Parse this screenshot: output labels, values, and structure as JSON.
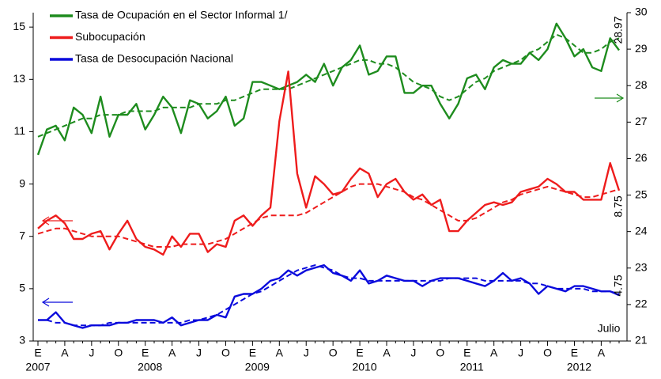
{
  "chart_data": {
    "type": "line",
    "categories": [
      "E",
      null,
      null,
      "A",
      null,
      null,
      "J",
      null,
      null,
      "O",
      null,
      null,
      "E",
      null,
      null,
      "A",
      null,
      null,
      "J",
      null,
      null,
      "O",
      null,
      null,
      "E",
      null,
      null,
      "A",
      null,
      null,
      "J",
      null,
      null,
      "O",
      null,
      null,
      "E",
      null,
      null,
      "A",
      null,
      null,
      "J",
      null,
      null,
      "O",
      null,
      null,
      "E",
      null,
      null,
      "A",
      null,
      null,
      "J",
      null,
      null,
      "O",
      null,
      null,
      "E",
      null,
      null,
      "A",
      null,
      null
    ],
    "years": [
      "2007",
      "2008",
      "2009",
      "2010",
      "2011",
      "2012"
    ],
    "ylim": [
      3,
      15.55
    ],
    "yticks": [
      3,
      5,
      7,
      9,
      11,
      13,
      15
    ],
    "y2lim": [
      21,
      30
    ],
    "y2ticks": [
      21,
      22,
      23,
      24,
      25,
      26,
      27,
      28,
      29,
      30
    ],
    "series": [
      {
        "name": "Tasa de Ocupación en el Sector Informal 1/",
        "color": "#1e8c1e",
        "axis": "y2",
        "values": [
          26.1,
          26.8,
          26.9,
          26.5,
          27.4,
          27.2,
          26.7,
          27.7,
          26.6,
          27.2,
          27.2,
          27.5,
          26.8,
          27.2,
          27.7,
          27.4,
          26.7,
          27.6,
          27.5,
          27.1,
          27.3,
          27.7,
          26.9,
          27.1,
          28.1,
          28.1,
          28.0,
          27.9,
          28.0,
          28.1,
          28.3,
          28.1,
          28.6,
          28.0,
          28.5,
          28.7,
          29.1,
          28.3,
          28.4,
          28.8,
          28.8,
          27.8,
          27.8,
          28.0,
          28.0,
          27.5,
          27.1,
          27.5,
          28.2,
          28.3,
          27.9,
          28.5,
          28.7,
          28.6,
          28.6,
          28.9,
          28.7,
          29.0,
          29.7,
          29.3,
          28.8,
          29.0,
          28.5,
          28.4,
          29.3,
          28.97
        ],
        "trend": [
          26.6,
          26.7,
          26.8,
          26.9,
          27.0,
          27.1,
          27.1,
          27.2,
          27.2,
          27.2,
          27.3,
          27.3,
          27.3,
          27.3,
          27.4,
          27.4,
          27.4,
          27.4,
          27.5,
          27.5,
          27.5,
          27.6,
          27.6,
          27.7,
          27.8,
          27.9,
          27.9,
          27.9,
          27.9,
          28.0,
          28.1,
          28.2,
          28.3,
          28.4,
          28.5,
          28.6,
          28.7,
          28.7,
          28.6,
          28.6,
          28.5,
          28.3,
          28.1,
          28.0,
          27.9,
          27.7,
          27.6,
          27.7,
          27.9,
          28.1,
          28.2,
          28.4,
          28.5,
          28.6,
          28.7,
          28.9,
          29.0,
          29.2,
          29.4,
          29.3,
          29.1,
          28.9,
          28.9,
          29.0,
          29.2,
          29.3
        ]
      },
      {
        "name": "Subocupación",
        "color": "#ee1c1c",
        "values": [
          7.3,
          7.6,
          7.8,
          7.5,
          6.9,
          6.9,
          7.1,
          7.2,
          6.5,
          7.1,
          7.6,
          6.9,
          6.6,
          6.5,
          6.3,
          7.0,
          6.6,
          7.1,
          7.1,
          6.4,
          6.7,
          6.6,
          7.6,
          7.8,
          7.4,
          7.8,
          8.1,
          11.4,
          13.3,
          9.4,
          8.1,
          9.3,
          9.0,
          8.6,
          8.7,
          9.2,
          9.6,
          9.4,
          8.5,
          9.0,
          9.2,
          8.7,
          8.4,
          8.6,
          8.2,
          8.4,
          7.2,
          7.2,
          7.6,
          7.9,
          8.2,
          8.3,
          8.2,
          8.3,
          8.7,
          8.8,
          8.9,
          9.2,
          9.0,
          8.7,
          8.7,
          8.4,
          8.4,
          8.4,
          9.8,
          8.75
        ],
        "trend": [
          7.1,
          7.2,
          7.3,
          7.3,
          7.2,
          7.1,
          7.0,
          7.0,
          7.0,
          7.0,
          6.9,
          6.8,
          6.7,
          6.6,
          6.6,
          6.6,
          6.7,
          6.7,
          6.7,
          6.7,
          6.8,
          6.9,
          7.1,
          7.3,
          7.5,
          7.7,
          7.8,
          7.8,
          7.8,
          7.8,
          7.9,
          8.1,
          8.3,
          8.5,
          8.7,
          8.9,
          9.0,
          9.0,
          9.0,
          8.9,
          8.8,
          8.7,
          8.5,
          8.4,
          8.2,
          8.0,
          7.8,
          7.6,
          7.6,
          7.7,
          7.9,
          8.1,
          8.3,
          8.4,
          8.6,
          8.7,
          8.8,
          8.9,
          8.8,
          8.7,
          8.6,
          8.5,
          8.5,
          8.6,
          8.7,
          8.8
        ]
      },
      {
        "name": "Tasa de Desocupación Nacional",
        "color": "#0a0adc",
        "values": [
          3.8,
          3.8,
          4.1,
          3.7,
          3.6,
          3.5,
          3.6,
          3.6,
          3.6,
          3.7,
          3.7,
          3.8,
          3.8,
          3.8,
          3.7,
          3.9,
          3.6,
          3.7,
          3.8,
          3.8,
          4.0,
          3.9,
          4.7,
          4.8,
          4.8,
          5.0,
          5.3,
          5.4,
          5.7,
          5.5,
          5.7,
          5.8,
          5.9,
          5.6,
          5.5,
          5.3,
          5.7,
          5.2,
          5.3,
          5.5,
          5.4,
          5.3,
          5.3,
          5.1,
          5.3,
          5.4,
          5.4,
          5.4,
          5.3,
          5.2,
          5.1,
          5.3,
          5.6,
          5.3,
          5.4,
          5.2,
          4.8,
          5.1,
          5.0,
          4.9,
          5.1,
          5.1,
          5.0,
          4.9,
          4.9,
          4.75
        ],
        "trend": [
          3.8,
          3.8,
          3.7,
          3.7,
          3.6,
          3.6,
          3.6,
          3.6,
          3.7,
          3.7,
          3.7,
          3.7,
          3.7,
          3.7,
          3.7,
          3.7,
          3.7,
          3.8,
          3.8,
          3.9,
          4.0,
          4.2,
          4.4,
          4.6,
          4.8,
          4.9,
          5.1,
          5.3,
          5.5,
          5.7,
          5.8,
          5.9,
          5.8,
          5.7,
          5.5,
          5.4,
          5.4,
          5.3,
          5.3,
          5.3,
          5.3,
          5.3,
          5.3,
          5.3,
          5.3,
          5.3,
          5.4,
          5.4,
          5.4,
          5.4,
          5.3,
          5.3,
          5.3,
          5.3,
          5.3,
          5.2,
          5.2,
          5.1,
          5.0,
          5.0,
          5.0,
          5.0,
          4.9,
          4.9,
          4.9,
          4.8
        ]
      }
    ],
    "annotations": [
      {
        "text": "28.97",
        "color": "#1e8c1e"
      },
      {
        "text": "8.75",
        "color": "#ee1c1c"
      },
      {
        "text": "4.75",
        "color": "#0a0adc"
      },
      {
        "text": "Julio",
        "color": "#000000"
      }
    ]
  }
}
